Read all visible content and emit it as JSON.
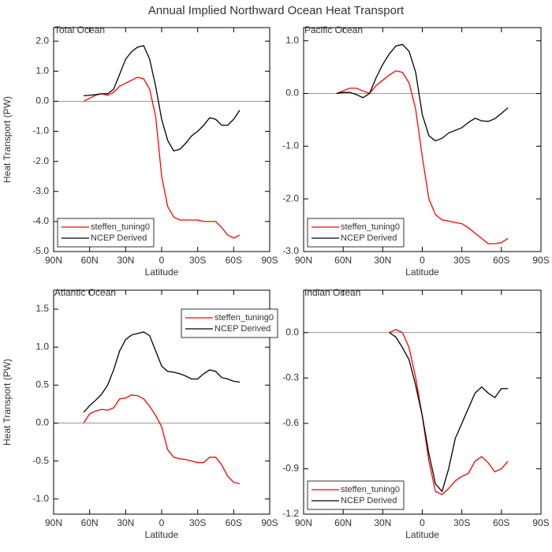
{
  "title": "Annual Implied Northward Ocean Heat Transport",
  "chart_data": [
    {
      "type": "line",
      "title": "Total Ocean",
      "xlabel": "Latitude",
      "ylabel": "Heat Transport (PW)",
      "x": [
        65,
        60,
        55,
        50,
        45,
        40,
        35,
        30,
        25,
        20,
        15,
        10,
        5,
        0,
        -5,
        -10,
        -15,
        -20,
        -25,
        -30,
        -35,
        -40,
        -45,
        -50,
        -55,
        -60,
        -65
      ],
      "xlim": [
        90,
        -90
      ],
      "xticks": [
        {
          "value": 90,
          "label": "90N"
        },
        {
          "value": 60,
          "label": "60N"
        },
        {
          "value": 30,
          "label": "30N"
        },
        0,
        {
          "value": -30,
          "label": "30S"
        },
        {
          "value": -60,
          "label": "60S"
        },
        {
          "value": -90,
          "label": "90S"
        }
      ],
      "ylim": [
        -5.0,
        2.45
      ],
      "yticks": [
        {
          "value": 2,
          "label": "2.0"
        },
        {
          "value": 1,
          "label": "1.0"
        },
        {
          "value": 0,
          "label": "0.0"
        },
        {
          "value": -1,
          "label": "-1.0"
        },
        {
          "value": -2,
          "label": "-2.0"
        },
        {
          "value": -3,
          "label": "-3.0"
        },
        {
          "value": -4,
          "label": "-4.0"
        },
        {
          "value": -5,
          "label": "-5.0"
        }
      ],
      "legend": "lower left",
      "series": [
        {
          "name": "steffen_tuning0",
          "color": "#ff0000",
          "values": [
            0.0,
            0.1,
            0.2,
            0.25,
            0.2,
            0.3,
            0.5,
            0.6,
            0.7,
            0.8,
            0.75,
            0.4,
            -0.5,
            -2.5,
            -3.5,
            -3.85,
            -3.95,
            -3.95,
            -3.95,
            -3.95,
            -4.0,
            -4.0,
            -4.0,
            -4.2,
            -4.45,
            -4.55,
            -4.45
          ]
        },
        {
          "name": "NCEP Derived",
          "color": "#000000",
          "values": [
            0.18,
            0.2,
            0.22,
            0.25,
            0.25,
            0.4,
            0.9,
            1.4,
            1.65,
            1.8,
            1.85,
            1.4,
            0.5,
            -0.6,
            -1.3,
            -1.65,
            -1.6,
            -1.4,
            -1.15,
            -1.0,
            -0.8,
            -0.55,
            -0.6,
            -0.8,
            -0.8,
            -0.6,
            -0.3
          ]
        }
      ]
    },
    {
      "type": "line",
      "title": "Pacific Ocean",
      "xlabel": "Latitude",
      "x": [
        65,
        60,
        55,
        50,
        45,
        40,
        35,
        30,
        25,
        20,
        15,
        10,
        5,
        0,
        -5,
        -10,
        -15,
        -20,
        -25,
        -30,
        -35,
        -40,
        -45,
        -50,
        -55,
        -60,
        -65
      ],
      "xlim": [
        90,
        -90
      ],
      "xticks": [
        {
          "value": 90,
          "label": "90N"
        },
        {
          "value": 60,
          "label": "60N"
        },
        {
          "value": 30,
          "label": "30N"
        },
        0,
        {
          "value": -30,
          "label": "30S"
        },
        {
          "value": -60,
          "label": "60S"
        },
        {
          "value": -90,
          "label": "90S"
        }
      ],
      "ylim": [
        -3.0,
        1.25
      ],
      "yticks": [
        {
          "value": 1,
          "label": "1.0"
        },
        {
          "value": 0,
          "label": "0.0"
        },
        {
          "value": -1,
          "label": "-1.0"
        },
        {
          "value": -2,
          "label": "-2.0"
        },
        {
          "value": -3,
          "label": "-3.0"
        }
      ],
      "legend": "lower left",
      "series": [
        {
          "name": "steffen_tuning0",
          "color": "#ff0000",
          "values": [
            0.0,
            0.05,
            0.1,
            0.1,
            0.05,
            0.0,
            0.15,
            0.25,
            0.35,
            0.43,
            0.4,
            0.2,
            -0.3,
            -1.2,
            -2.0,
            -2.3,
            -2.4,
            -2.42,
            -2.45,
            -2.47,
            -2.55,
            -2.65,
            -2.75,
            -2.85,
            -2.85,
            -2.83,
            -2.75
          ]
        },
        {
          "name": "NCEP Derived",
          "color": "#000000",
          "values": [
            0.0,
            0.02,
            0.02,
            -0.02,
            -0.08,
            0.0,
            0.3,
            0.55,
            0.75,
            0.9,
            0.93,
            0.8,
            0.4,
            -0.4,
            -0.8,
            -0.9,
            -0.85,
            -0.75,
            -0.7,
            -0.65,
            -0.55,
            -0.47,
            -0.52,
            -0.53,
            -0.48,
            -0.38,
            -0.27
          ]
        }
      ]
    },
    {
      "type": "line",
      "title": "Atlantic Ocean",
      "xlabel": "Latitude",
      "ylabel": "Heat Transport (PW)",
      "x": [
        65,
        60,
        55,
        50,
        45,
        40,
        35,
        30,
        25,
        20,
        15,
        10,
        5,
        0,
        -5,
        -10,
        -15,
        -20,
        -25,
        -30,
        -35,
        -40,
        -45,
        -50,
        -55,
        -60,
        -65
      ],
      "xlim": [
        90,
        -90
      ],
      "xticks": [
        {
          "value": 90,
          "label": "90N"
        },
        {
          "value": 60,
          "label": "60N"
        },
        {
          "value": 30,
          "label": "30N"
        },
        0,
        {
          "value": -30,
          "label": "30S"
        },
        {
          "value": -60,
          "label": "60S"
        },
        {
          "value": -90,
          "label": "90S"
        }
      ],
      "ylim": [
        -1.2,
        1.75
      ],
      "yticks": [
        1.5,
        {
          "value": 1,
          "label": "1.0"
        },
        0.5,
        {
          "value": 0,
          "label": "0.0"
        },
        -0.5,
        {
          "value": -1,
          "label": "-1.0"
        }
      ],
      "legend": "upper right",
      "series": [
        {
          "name": "steffen_tuning0",
          "color": "#ff0000",
          "values": [
            0.0,
            0.12,
            0.16,
            0.18,
            0.17,
            0.2,
            0.32,
            0.33,
            0.37,
            0.36,
            0.32,
            0.22,
            0.1,
            -0.05,
            -0.35,
            -0.45,
            -0.47,
            -0.48,
            -0.5,
            -0.52,
            -0.52,
            -0.45,
            -0.45,
            -0.55,
            -0.7,
            -0.78,
            -0.8
          ]
        },
        {
          "name": "NCEP Derived",
          "color": "#000000",
          "values": [
            0.14,
            0.23,
            0.3,
            0.38,
            0.5,
            0.7,
            0.95,
            1.1,
            1.16,
            1.18,
            1.2,
            1.15,
            0.95,
            0.75,
            0.68,
            0.67,
            0.65,
            0.62,
            0.58,
            0.58,
            0.65,
            0.7,
            0.68,
            0.6,
            0.58,
            0.55,
            0.54
          ]
        }
      ]
    },
    {
      "type": "line",
      "title": "Indian Ocean",
      "xlabel": "Latitude",
      "x": [
        25,
        20,
        15,
        10,
        5,
        0,
        -5,
        -10,
        -15,
        -20,
        -25,
        -30,
        -35,
        -40,
        -45,
        -50,
        -55,
        -60,
        -65
      ],
      "xlim": [
        90,
        -90
      ],
      "xticks": [
        {
          "value": 90,
          "label": "90N"
        },
        {
          "value": 60,
          "label": "60N"
        },
        {
          "value": 30,
          "label": "30N"
        },
        0,
        {
          "value": -30,
          "label": "30S"
        },
        {
          "value": -60,
          "label": "60S"
        },
        {
          "value": -90,
          "label": "90S"
        }
      ],
      "ylim": [
        -1.2,
        0.28
      ],
      "yticks": [
        {
          "value": 0,
          "label": "0.0"
        },
        -0.3,
        -0.6,
        -0.9,
        -1.2
      ],
      "legend": "lower left",
      "series": [
        {
          "name": "steffen_tuning0",
          "color": "#ff0000",
          "values": [
            0.0,
            0.02,
            0.0,
            -0.1,
            -0.3,
            -0.55,
            -0.85,
            -1.05,
            -1.07,
            -1.03,
            -0.98,
            -0.95,
            -0.93,
            -0.85,
            -0.82,
            -0.86,
            -0.92,
            -0.9,
            -0.85
          ]
        },
        {
          "name": "NCEP Derived",
          "color": "#000000",
          "values": [
            0.0,
            -0.03,
            -0.1,
            -0.18,
            -0.35,
            -0.55,
            -0.8,
            -1.0,
            -1.05,
            -0.9,
            -0.7,
            -0.6,
            -0.5,
            -0.4,
            -0.36,
            -0.4,
            -0.43,
            -0.37,
            -0.37
          ]
        }
      ]
    }
  ]
}
